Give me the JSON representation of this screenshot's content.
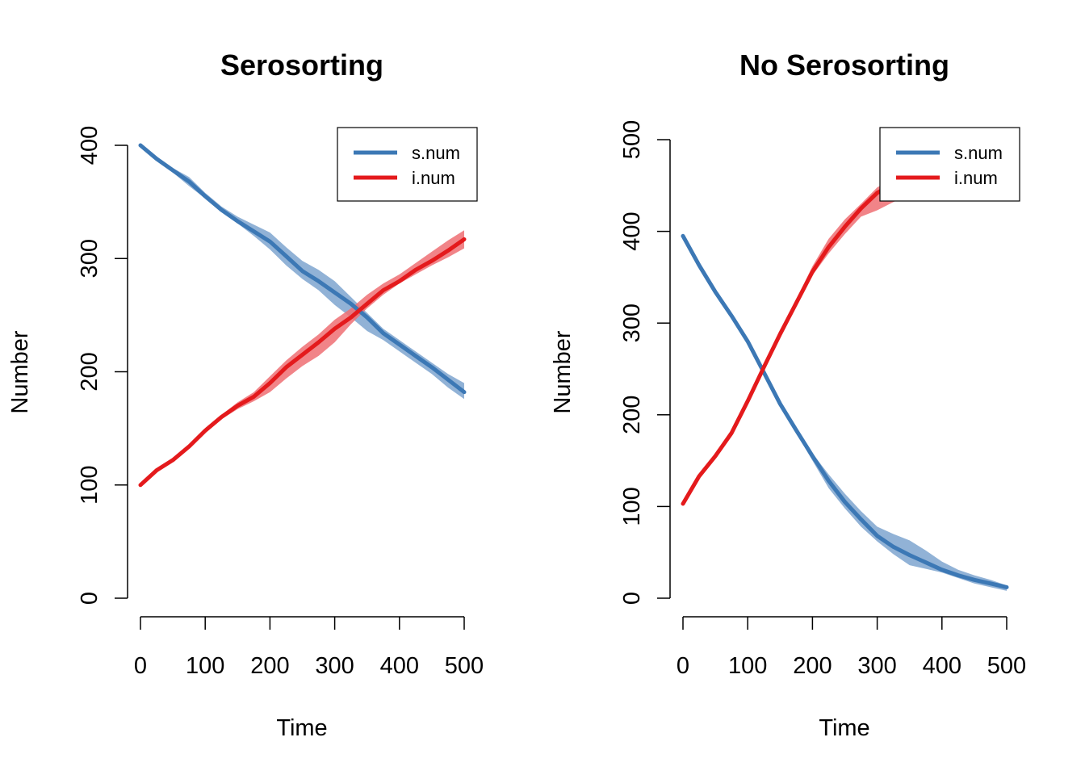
{
  "colors": {
    "s_num": "#3C78B5",
    "i_num": "#E41A1C",
    "s_band": "#7EA4CF",
    "i_band": "#EE6F73"
  },
  "chart_data": [
    {
      "type": "line",
      "title": "Serosorting",
      "xlabel": "Time",
      "ylabel": "Number",
      "xlim": [
        0,
        500
      ],
      "ylim": [
        0,
        400
      ],
      "xticks": [
        "0",
        "100",
        "200",
        "300",
        "400",
        "500"
      ],
      "yticks": [
        "0",
        "100",
        "200",
        "300",
        "400"
      ],
      "legend": {
        "position": "top-right",
        "entries": [
          "s.num",
          "i.num"
        ]
      },
      "x": [
        0,
        25,
        50,
        75,
        100,
        125,
        150,
        175,
        200,
        225,
        250,
        275,
        300,
        325,
        350,
        375,
        400,
        425,
        450,
        475,
        500
      ],
      "series": [
        {
          "name": "s.num",
          "values": [
            400,
            388,
            378,
            368,
            355,
            343,
            333,
            324,
            315,
            302,
            289,
            280,
            270,
            260,
            248,
            234,
            224,
            214,
            204,
            193,
            182
          ],
          "lower": [
            400,
            387,
            376,
            364,
            353,
            341,
            331,
            320,
            308,
            294,
            282,
            272,
            259,
            248,
            236,
            228,
            218,
            208,
            198,
            186,
            176
          ],
          "upper": [
            400,
            389,
            380,
            372,
            358,
            346,
            337,
            330,
            323,
            310,
            298,
            290,
            280,
            266,
            252,
            238,
            228,
            218,
            208,
            198,
            190
          ]
        },
        {
          "name": "i.num",
          "values": [
            100,
            113,
            122,
            134,
            148,
            160,
            170,
            178,
            190,
            204,
            215,
            226,
            238,
            248,
            260,
            272,
            280,
            290,
            298,
            307,
            317
          ],
          "lower": [
            100,
            112,
            121,
            132,
            146,
            158,
            167,
            174,
            182,
            194,
            205,
            214,
            226,
            242,
            256,
            268,
            278,
            286,
            294,
            301,
            309
          ],
          "upper": [
            100,
            114,
            124,
            136,
            150,
            162,
            173,
            182,
            196,
            210,
            222,
            233,
            246,
            256,
            268,
            278,
            286,
            296,
            306,
            316,
            325
          ]
        }
      ]
    },
    {
      "type": "line",
      "title": "No Serosorting",
      "xlabel": "Time",
      "ylabel": "Number",
      "xlim": [
        0,
        500
      ],
      "ylim": [
        0,
        500
      ],
      "xticks": [
        "0",
        "100",
        "200",
        "300",
        "400",
        "500"
      ],
      "yticks": [
        "0",
        "100",
        "200",
        "300",
        "400",
        "500"
      ],
      "legend": {
        "position": "top-right",
        "entries": [
          "s.num",
          "i.num"
        ]
      },
      "x": [
        0,
        25,
        50,
        75,
        100,
        125,
        150,
        175,
        200,
        225,
        250,
        275,
        300,
        325,
        350,
        375,
        400,
        425,
        450,
        475,
        500
      ],
      "series": [
        {
          "name": "s.num",
          "values": [
            395,
            363,
            334,
            308,
            280,
            246,
            212,
            183,
            155,
            128,
            105,
            86,
            68,
            56,
            47,
            39,
            31,
            25,
            20,
            16,
            12
          ],
          "lower": [
            395,
            362,
            332,
            305,
            276,
            243,
            210,
            180,
            150,
            120,
            98,
            78,
            62,
            48,
            36,
            32,
            28,
            22,
            16,
            12,
            8
          ],
          "upper": [
            395,
            364,
            336,
            311,
            283,
            249,
            215,
            186,
            158,
            135,
            114,
            95,
            78,
            70,
            63,
            52,
            40,
            31,
            25,
            20,
            14
          ]
        },
        {
          "name": "i.num",
          "values": [
            103,
            133,
            155,
            180,
            215,
            252,
            288,
            322,
            356,
            383,
            405,
            425,
            442,
            452,
            460,
            467,
            475,
            480,
            484,
            487,
            490
          ],
          "lower": [
            103,
            132,
            153,
            177,
            212,
            248,
            283,
            318,
            352,
            376,
            397,
            416,
            423,
            432,
            440,
            447,
            455,
            460,
            464,
            467,
            470
          ],
          "upper": [
            103,
            134,
            157,
            183,
            218,
            255,
            292,
            326,
            362,
            392,
            413,
            430,
            448,
            458,
            466,
            473,
            481,
            486,
            490,
            493,
            496
          ]
        }
      ]
    }
  ]
}
